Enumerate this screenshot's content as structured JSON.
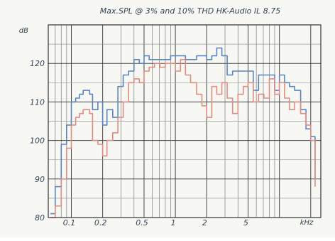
{
  "chart_data": {
    "type": "line",
    "title": "Max.SPL @ 3% and 10% THD HK-Audio IL 8.75",
    "ylabel": "dB",
    "xlabel": "kHz",
    "x_scale": "log",
    "xlim": [
      0.06,
      25
    ],
    "ylim": [
      80,
      130
    ],
    "grid": true,
    "y_ticks": [
      80,
      90,
      100,
      110,
      120
    ],
    "x_ticks": [
      {
        "value": 0.1,
        "label": "0.1"
      },
      {
        "value": 0.2,
        "label": "0.2"
      },
      {
        "value": 0.5,
        "label": "0.5"
      },
      {
        "value": 1,
        "label": "1"
      },
      {
        "value": 2,
        "label": "2"
      },
      {
        "value": 5,
        "label": "5"
      }
    ],
    "series": [
      {
        "color": "#5b84be",
        "points": [
          [
            0.063,
            81
          ],
          [
            0.07,
            88
          ],
          [
            0.08,
            99
          ],
          [
            0.09,
            104
          ],
          [
            0.1,
            110
          ],
          [
            0.11,
            111
          ],
          [
            0.12,
            112
          ],
          [
            0.13,
            113
          ],
          [
            0.14,
            113
          ],
          [
            0.15,
            112
          ],
          [
            0.16,
            108
          ],
          [
            0.18,
            110
          ],
          [
            0.2,
            104
          ],
          [
            0.22,
            108
          ],
          [
            0.25,
            106
          ],
          [
            0.28,
            114
          ],
          [
            0.315,
            117
          ],
          [
            0.355,
            118
          ],
          [
            0.4,
            121
          ],
          [
            0.45,
            120
          ],
          [
            0.5,
            122
          ],
          [
            0.56,
            121
          ],
          [
            0.63,
            121
          ],
          [
            0.71,
            121
          ],
          [
            0.8,
            121
          ],
          [
            0.9,
            122
          ],
          [
            1.0,
            122
          ],
          [
            1.12,
            122
          ],
          [
            1.25,
            121
          ],
          [
            1.4,
            121
          ],
          [
            1.6,
            122
          ],
          [
            1.8,
            122
          ],
          [
            2.0,
            121
          ],
          [
            2.24,
            122
          ],
          [
            2.5,
            124
          ],
          [
            2.8,
            122
          ],
          [
            3.15,
            117
          ],
          [
            3.55,
            118
          ],
          [
            4.0,
            118
          ],
          [
            4.5,
            118
          ],
          [
            5.0,
            118
          ],
          [
            5.6,
            113
          ],
          [
            6.3,
            117
          ],
          [
            7.1,
            117
          ],
          [
            8.0,
            117
          ],
          [
            9.0,
            113
          ],
          [
            10.0,
            117
          ],
          [
            11.2,
            115
          ],
          [
            12.5,
            114
          ],
          [
            14.0,
            113
          ],
          [
            16.0,
            108
          ],
          [
            18.0,
            103
          ],
          [
            20.0,
            101
          ],
          [
            22.0,
            90
          ]
        ]
      },
      {
        "color": "#e08c80",
        "points": [
          [
            0.063,
            80
          ],
          [
            0.07,
            83
          ],
          [
            0.08,
            90
          ],
          [
            0.09,
            98
          ],
          [
            0.1,
            104
          ],
          [
            0.11,
            106
          ],
          [
            0.12,
            107
          ],
          [
            0.13,
            108
          ],
          [
            0.14,
            108
          ],
          [
            0.15,
            107
          ],
          [
            0.16,
            100
          ],
          [
            0.18,
            99
          ],
          [
            0.2,
            96
          ],
          [
            0.22,
            100
          ],
          [
            0.25,
            102
          ],
          [
            0.28,
            106
          ],
          [
            0.315,
            110
          ],
          [
            0.355,
            115
          ],
          [
            0.4,
            116
          ],
          [
            0.45,
            115
          ],
          [
            0.5,
            118
          ],
          [
            0.56,
            119
          ],
          [
            0.63,
            120
          ],
          [
            0.71,
            119
          ],
          [
            0.8,
            120
          ],
          [
            0.9,
            120
          ],
          [
            1.0,
            118
          ],
          [
            1.12,
            121
          ],
          [
            1.25,
            117
          ],
          [
            1.4,
            115
          ],
          [
            1.6,
            112
          ],
          [
            1.8,
            109
          ],
          [
            2.0,
            106
          ],
          [
            2.24,
            114
          ],
          [
            2.5,
            112
          ],
          [
            2.8,
            115
          ],
          [
            3.15,
            111
          ],
          [
            3.55,
            107
          ],
          [
            4.0,
            112
          ],
          [
            4.5,
            114
          ],
          [
            5.0,
            115
          ],
          [
            5.6,
            110
          ],
          [
            6.3,
            112
          ],
          [
            7.1,
            111
          ],
          [
            8.0,
            116
          ],
          [
            9.0,
            112
          ],
          [
            10.0,
            115
          ],
          [
            11.2,
            111
          ],
          [
            12.5,
            108
          ],
          [
            14.0,
            110
          ],
          [
            16.0,
            107
          ],
          [
            18.0,
            104
          ],
          [
            20.0,
            100
          ],
          [
            22.0,
            88
          ]
        ]
      }
    ]
  }
}
